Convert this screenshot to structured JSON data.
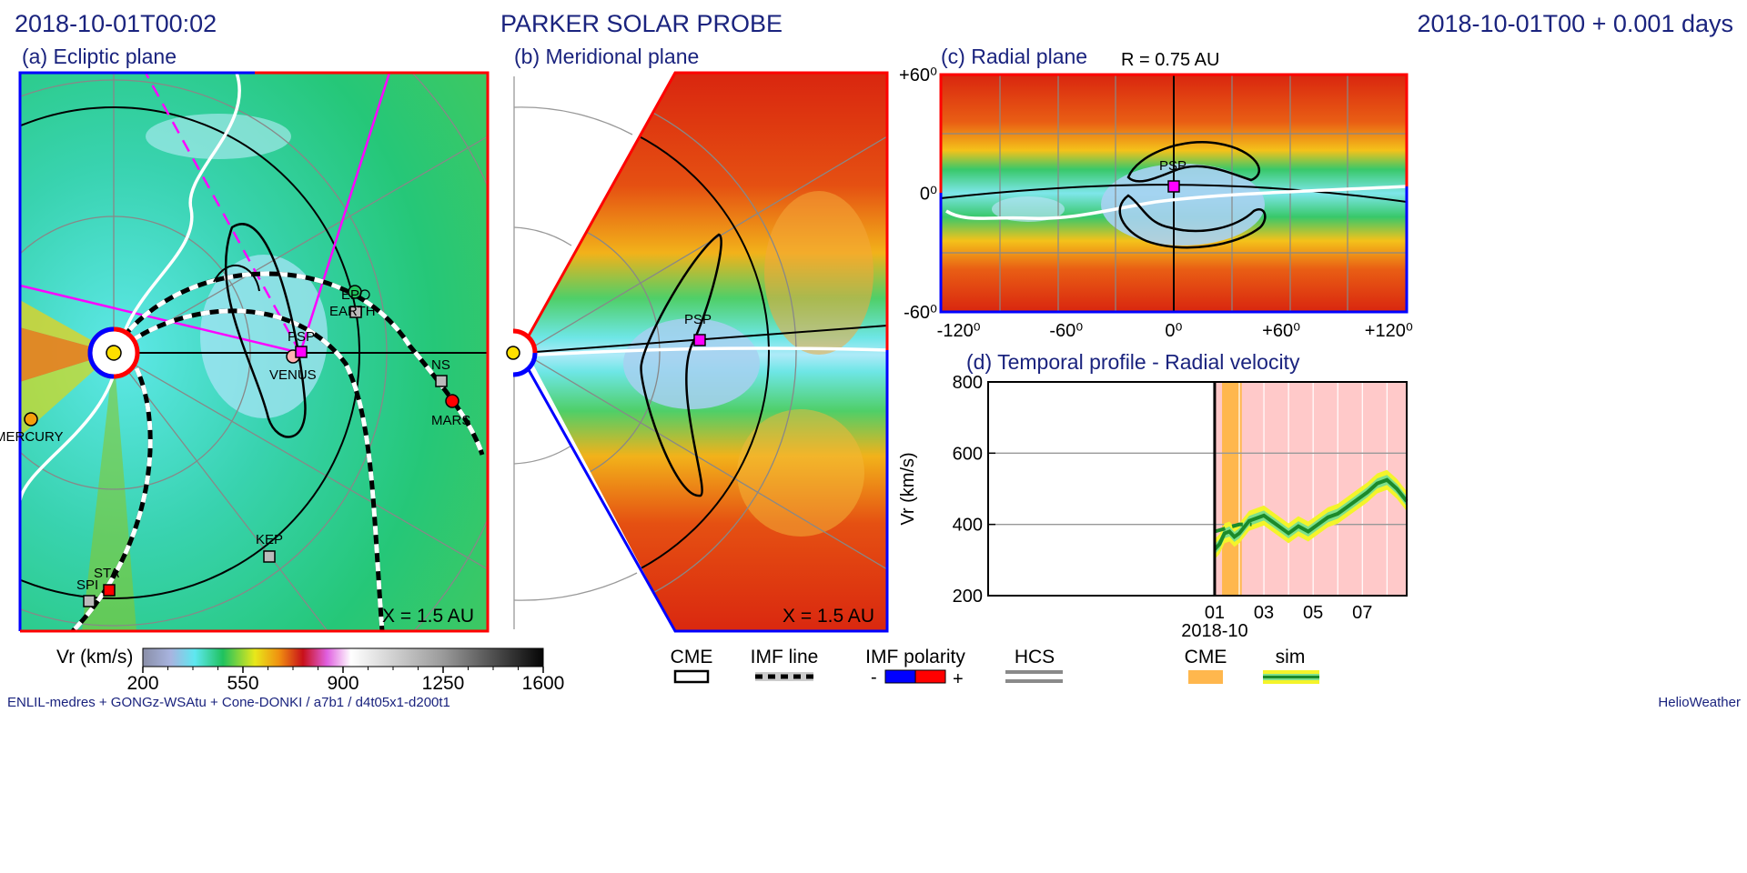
{
  "header": {
    "left": "2018-10-01T00:02",
    "center": "PARKER SOLAR PROBE",
    "right": "2018-10-01T00 +  0.001 days"
  },
  "panels": {
    "a": {
      "title": "(a) Ecliptic plane",
      "scale": "X = 1.5 AU"
    },
    "b": {
      "title": "(b) Meridional plane",
      "scale": "X = 1.5 AU"
    },
    "c": {
      "title": "(c) Radial plane",
      "radius": "R = 0.75 AU"
    },
    "d": {
      "title": "(d) Temporal profile - Radial velocity"
    }
  },
  "bodies": {
    "psp_a": "PSP",
    "venus": "VENUS",
    "earth": "EARTH",
    "ep": "EP",
    "ns": "NS",
    "mars": "MARS",
    "mercury": "MERCURY",
    "kep": "KEP",
    "sta": "STA",
    "spi": "SPI",
    "psp_b": "PSP",
    "psp_c": "PSP"
  },
  "colors": {
    "title": "#1a237e",
    "psp": "#ff00ff",
    "mars": "#ff0000",
    "earth": "#22c55e",
    "venus": "#ffb0b0",
    "mercury": "#f59e0b",
    "sun": "#ffe000",
    "polarity_neg": "#0000ff",
    "polarity_pos": "#ff0000",
    "cme_band": "#ffb74d",
    "cme_window": "#ffc9c9",
    "sim_line": "#1b8a2a",
    "sim_band": "#f4f42a"
  },
  "legend": {
    "cme": "CME",
    "imf_line": "IMF line",
    "imf_polarity": "IMF polarity",
    "minus": "-",
    "plus": "+",
    "hcs": "HCS",
    "cme_window": "CME",
    "sim": "sim"
  },
  "colorbar": {
    "label": "Vr (km/s)",
    "ticks": [
      "200",
      "550",
      "900",
      "1250",
      "1600"
    ],
    "range": [
      200,
      1600
    ]
  },
  "footer": {
    "left": "ENLIL-medres + GONGz-WSAtu + Cone-DONKI / a7b1 / d4t05x1-d200t1",
    "right": "HelioWeather"
  },
  "chart_data": [
    {
      "type": "heatmap",
      "title": "(c) Radial plane",
      "xticks": [
        "-120⁰",
        "-60⁰",
        "0⁰",
        "+60⁰",
        "+120⁰"
      ],
      "yticks": [
        "+60⁰",
        "0⁰",
        "-60⁰"
      ],
      "xlim": [
        -130,
        130
      ],
      "ylim": [
        -60,
        60
      ]
    },
    {
      "type": "line",
      "title": "(d) Temporal profile - Radial velocity",
      "ylabel": "Vr (km/s)",
      "xlabel": "2018-10",
      "xticks": [
        "01",
        "03",
        "05",
        "07"
      ],
      "yticks": [
        "800",
        "600",
        "400",
        "200"
      ],
      "ylim": [
        200,
        800
      ],
      "xlim": [
        -9.2,
        7.8
      ],
      "series": [
        {
          "x": [
            0.0,
            0.2,
            0.4,
            0.6,
            0.8,
            1.0,
            1.4,
            2.0,
            2.5,
            3.0,
            3.4,
            3.8,
            4.2,
            4.6,
            5.0,
            5.4,
            5.8,
            6.2,
            6.6,
            7.0,
            7.4,
            7.8
          ],
          "values": [
            330,
            345,
            375,
            380,
            365,
            375,
            410,
            425,
            400,
            375,
            395,
            380,
            400,
            420,
            430,
            450,
            470,
            490,
            515,
            525,
            500,
            465
          ]
        },
        {
          "x": [
            0.0,
            0.5,
            1.0,
            1.5
          ],
          "values": [
            380,
            390,
            400,
            400
          ]
        }
      ]
    }
  ]
}
